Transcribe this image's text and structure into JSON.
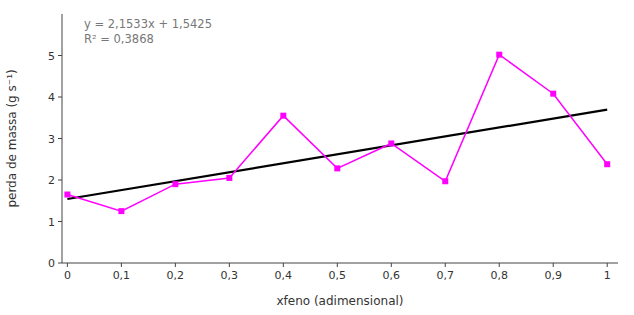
{
  "chart_data": {
    "type": "line",
    "x": [
      0,
      0.1,
      0.2,
      0.3,
      0.4,
      0.5,
      0.6,
      0.7,
      0.8,
      0.9,
      1.0
    ],
    "series": [
      {
        "color": "#FF00FF",
        "marker": "square",
        "values": [
          1.65,
          1.25,
          1.9,
          2.05,
          3.55,
          2.28,
          2.88,
          1.97,
          5.02,
          4.08,
          2.38
        ]
      },
      {
        "color": "black",
        "x": [
          0.0,
          1.0
        ],
        "values": [
          1.5425,
          3.6958
        ]
      }
    ],
    "annotation": "y = 2,1533x + 1,5425\nR² = 0,3868",
    "x_label": "xfeno (adimensional)",
    "y_label": "perda de massa (g s⁻¹)",
    "xlim": [
      -0.01,
      1.02
    ],
    "ylim": [
      0,
      6
    ],
    "xticks": [
      0,
      {
        "value": 0.1,
        "label": "0,1"
      },
      {
        "value": 0.2,
        "label": "0,2"
      },
      {
        "value": 0.3,
        "label": "0,3"
      },
      {
        "value": 0.4,
        "label": "0,4"
      },
      {
        "value": 0.5,
        "label": "0,5"
      },
      {
        "value": 0.6,
        "label": "0,6"
      },
      {
        "value": 0.7,
        "label": "0,7"
      },
      {
        "value": 0.8,
        "label": "0,8"
      },
      {
        "value": 0.9,
        "label": "0,9"
      },
      1.0
    ],
    "yticks": [
      0,
      1,
      2,
      3,
      4,
      5
    ],
    "grid": false
  }
}
